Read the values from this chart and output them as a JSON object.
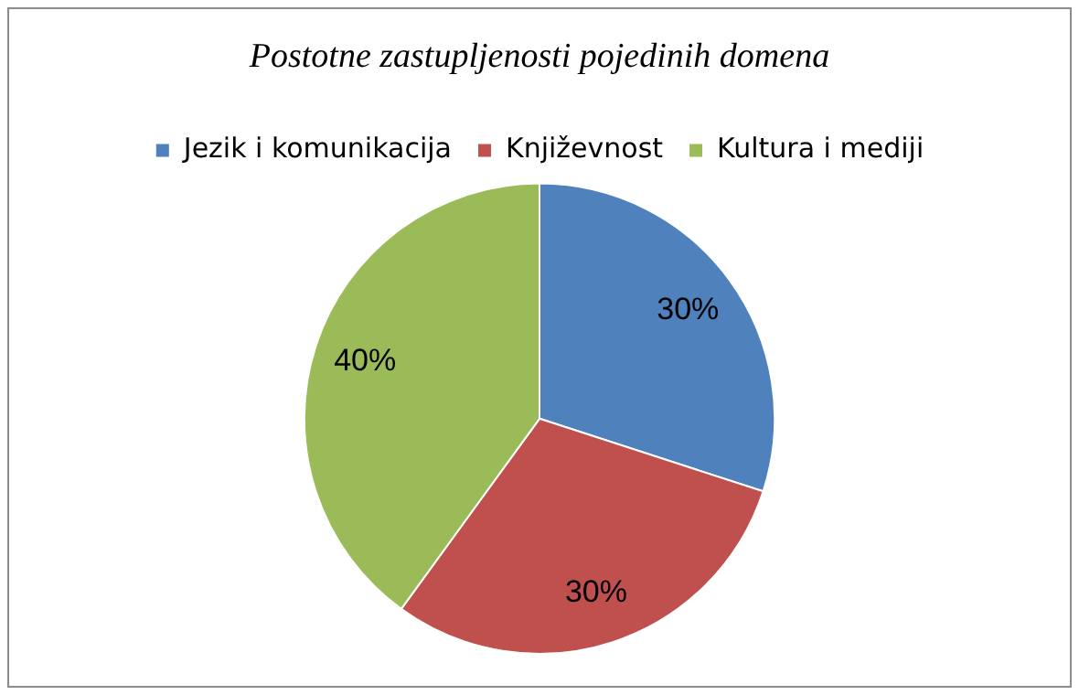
{
  "chart_data": {
    "type": "pie",
    "title": "Postotne zastupljenosti pojedinih domena",
    "categories": [
      "Jezik i komunikacija",
      "Književnost",
      "Kultura i mediji"
    ],
    "values": [
      30,
      30,
      40
    ],
    "colors": [
      "#4f81bd",
      "#c0504d",
      "#9bbb59"
    ],
    "value_labels": [
      "30%",
      "30%",
      "40%"
    ],
    "legend": "top"
  }
}
